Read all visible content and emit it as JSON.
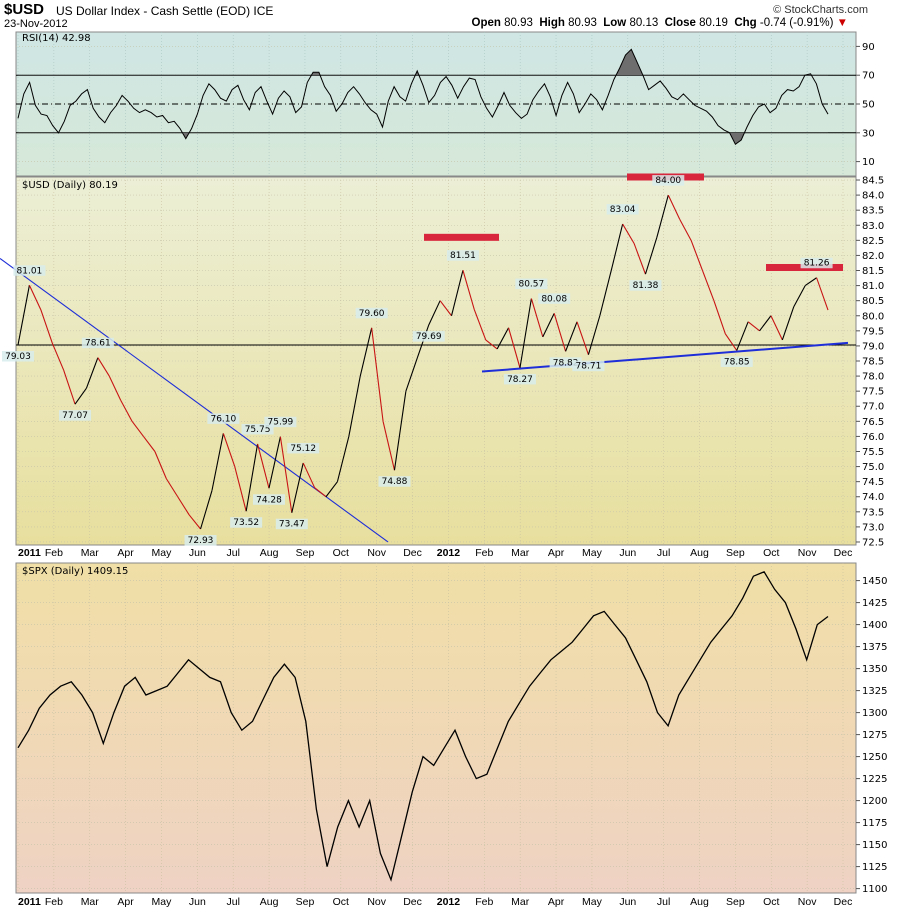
{
  "header": {
    "symbol": "$USD",
    "name": "US Dollar Index - Cash Settle (EOD)  ICE",
    "date": "23-Nov-2012",
    "copyright": "© StockCharts.com",
    "open_label": "Open",
    "open": "80.93",
    "high_label": "High",
    "high": "80.93",
    "low_label": "Low",
    "low": "80.13",
    "close_label": "Close",
    "close": "80.19",
    "chg_label": "Chg",
    "chg": "-0.74 (-0.91%)",
    "chg_arrow": "▼"
  },
  "colors": {
    "rsi_bg": "#cde5e2",
    "usd_bg_top": "#eeefd2",
    "usd_bg_bottom": "#e8e0a4",
    "spx_bg_top": "#f0dfa8",
    "spx_bg_bottom": "#f0d4c2",
    "trend_blue": "#1e2ed8",
    "resistance_red": "#d8263c",
    "down_red": "#c81414"
  },
  "x_axis": {
    "months": [
      "2011",
      "Feb",
      "Mar",
      "Apr",
      "May",
      "Jun",
      "Jul",
      "Aug",
      "Sep",
      "Oct",
      "Nov",
      "Dec",
      "2012",
      "Feb",
      "Mar",
      "Apr",
      "May",
      "Jun",
      "Jul",
      "Aug",
      "Sep",
      "Oct",
      "Nov",
      "Dec"
    ],
    "bold": [
      "2011",
      "2012"
    ]
  },
  "chart_data": [
    {
      "type": "line",
      "panel": "rsi",
      "title": "RSI(14) 42.98",
      "y_ticks": [
        "90",
        "70",
        "50",
        "30",
        "10"
      ],
      "ylim": [
        0,
        100
      ],
      "reference_lines": [
        70,
        50,
        30
      ],
      "series": [
        {
          "values": [
            40,
            57,
            65,
            49,
            43,
            42,
            35,
            30,
            38,
            49,
            52,
            57,
            60,
            47,
            41,
            37,
            44,
            49,
            56,
            52,
            47,
            44,
            46,
            44,
            41,
            42,
            37,
            38,
            33,
            26,
            33,
            43,
            56,
            64,
            60,
            54,
            52,
            60,
            63,
            53,
            46,
            58,
            62,
            52,
            43,
            54,
            59,
            55,
            44,
            48,
            65,
            72,
            72,
            62,
            56,
            45,
            50,
            58,
            62,
            57,
            51,
            46,
            43,
            34,
            52,
            62,
            55,
            52,
            64,
            73,
            63,
            51,
            56,
            65,
            69,
            63,
            54,
            62,
            68,
            67,
            55,
            47,
            41,
            49,
            58,
            49,
            44,
            40,
            43,
            53,
            59,
            64,
            55,
            42,
            56,
            65,
            57,
            44,
            50,
            57,
            53,
            46,
            56,
            67,
            75,
            84,
            88,
            79,
            70,
            60,
            63,
            66,
            61,
            55,
            53,
            57,
            53,
            49,
            47,
            45,
            41,
            35,
            32,
            30,
            22,
            25,
            34,
            42,
            48,
            50,
            44,
            47,
            56,
            60,
            59,
            62,
            70,
            71,
            64,
            50,
            43
          ]
        }
      ]
    },
    {
      "type": "line",
      "panel": "usd",
      "title": "$USD (Daily) 80.19",
      "y_ticks": [
        "84.5",
        "84.0",
        "83.5",
        "83.0",
        "82.5",
        "82.0",
        "81.5",
        "81.0",
        "80.5",
        "80.0",
        "79.5",
        "79.0",
        "78.5",
        "78.0",
        "77.5",
        "77.0",
        "76.5",
        "76.0",
        "75.5",
        "75.0",
        "74.5",
        "74.0",
        "73.5",
        "73.0",
        "72.5"
      ],
      "ylim": [
        72.4,
        84.6
      ],
      "series": [
        {
          "values": [
            79.03,
            81.01,
            80.2,
            79.1,
            78.2,
            77.07,
            77.6,
            78.61,
            78.0,
            77.2,
            76.5,
            76.0,
            75.5,
            74.6,
            74.0,
            73.4,
            72.93,
            74.2,
            76.1,
            75.0,
            73.52,
            75.75,
            74.28,
            75.99,
            73.47,
            75.12,
            74.3,
            74.0,
            74.5,
            76.0,
            78.0,
            79.6,
            76.5,
            74.88,
            77.5,
            78.6,
            79.69,
            80.5,
            80.0,
            81.51,
            80.2,
            79.2,
            78.9,
            79.6,
            78.27,
            80.57,
            79.3,
            80.08,
            78.82,
            79.8,
            78.71,
            80.0,
            81.5,
            83.04,
            82.4,
            81.38,
            82.6,
            84.0,
            83.2,
            82.5,
            81.5,
            80.5,
            79.4,
            78.85,
            79.8,
            79.5,
            80.0,
            79.2,
            80.3,
            81.0,
            81.26,
            80.19
          ]
        }
      ],
      "annotations": [
        {
          "label": "81.01",
          "value": 81.01
        },
        {
          "label": "79.03",
          "value": 79.03
        },
        {
          "label": "78.61",
          "value": 78.61
        },
        {
          "label": "77.07",
          "value": 77.07
        },
        {
          "label": "72.93",
          "value": 72.93
        },
        {
          "label": "76.10",
          "value": 76.1
        },
        {
          "label": "75.75",
          "value": 75.75
        },
        {
          "label": "73.52",
          "value": 73.52
        },
        {
          "label": "74.28",
          "value": 74.28
        },
        {
          "label": "75.99",
          "value": 75.99
        },
        {
          "label": "73.47",
          "value": 73.47
        },
        {
          "label": "75.12",
          "value": 75.12
        },
        {
          "label": "79.60",
          "value": 79.6
        },
        {
          "label": "74.88",
          "value": 74.88
        },
        {
          "label": "79.69",
          "value": 79.69
        },
        {
          "label": "81.51",
          "value": 81.51
        },
        {
          "label": "80.57",
          "value": 80.57
        },
        {
          "label": "80.08",
          "value": 80.08
        },
        {
          "label": "78.27",
          "value": 78.27
        },
        {
          "label": "78.82",
          "value": 78.82
        },
        {
          "label": "78.71",
          "value": 78.71
        },
        {
          "label": "83.04",
          "value": 83.04
        },
        {
          "label": "81.38",
          "value": 81.38
        },
        {
          "label": "84.00",
          "value": 84.0
        },
        {
          "label": "78.85",
          "value": 78.85
        },
        {
          "label": "81.26",
          "value": 81.26
        }
      ],
      "horizontal_line": 79.03,
      "resistance_levels": [
        82.6,
        84.6,
        81.6
      ]
    },
    {
      "type": "line",
      "panel": "spx",
      "title": "$SPX (Daily) 1409.15",
      "y_ticks": [
        "1450",
        "1425",
        "1400",
        "1375",
        "1350",
        "1325",
        "1300",
        "1275",
        "1250",
        "1225",
        "1200",
        "1175",
        "1150",
        "1125",
        "1100"
      ],
      "ylim": [
        1095,
        1470
      ],
      "series": [
        {
          "values": [
            1260,
            1280,
            1305,
            1320,
            1330,
            1335,
            1320,
            1300,
            1265,
            1300,
            1330,
            1340,
            1320,
            1325,
            1330,
            1345,
            1360,
            1350,
            1340,
            1335,
            1300,
            1280,
            1290,
            1315,
            1340,
            1355,
            1340,
            1290,
            1190,
            1125,
            1170,
            1200,
            1170,
            1200,
            1140,
            1110,
            1160,
            1210,
            1250,
            1240,
            1260,
            1280,
            1250,
            1225,
            1230,
            1260,
            1290,
            1310,
            1330,
            1345,
            1360,
            1370,
            1380,
            1395,
            1410,
            1415,
            1400,
            1385,
            1360,
            1335,
            1300,
            1285,
            1320,
            1340,
            1360,
            1380,
            1395,
            1410,
            1430,
            1455,
            1460,
            1440,
            1425,
            1395,
            1360,
            1400,
            1409.15
          ]
        }
      ]
    }
  ]
}
